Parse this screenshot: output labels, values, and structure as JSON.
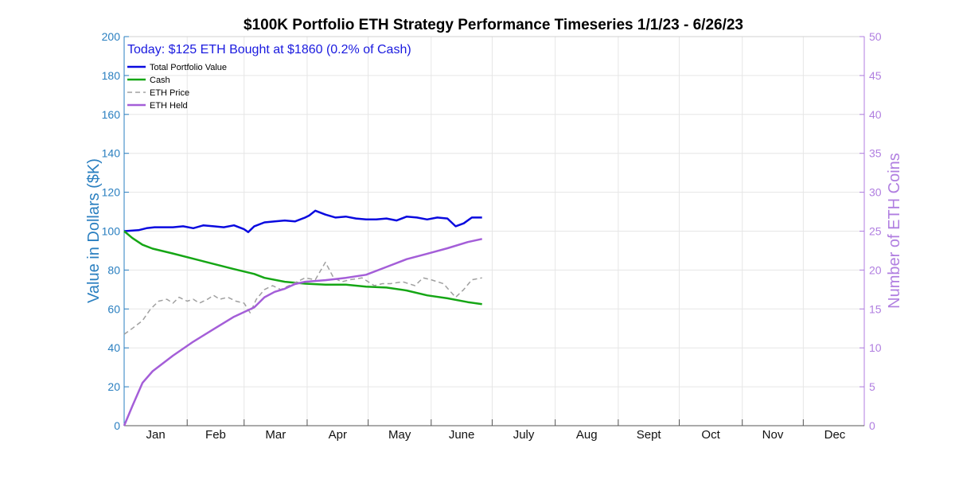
{
  "chart_data": {
    "type": "line",
    "title": "$100K Portfolio ETH Strategy Performance Timeseries 1/1/23 - 6/26/23",
    "annotation": "Today: $125 ETH Bought at $1860 (0.2% of Cash)",
    "ylabel_left": "Value in Dollars ($K)",
    "ylabel_right": "Number of ETH Coins",
    "ylim_left": [
      0,
      200
    ],
    "ylim_right": [
      0,
      50
    ],
    "yticks_left": [
      "0",
      "20",
      "40",
      "60",
      "80",
      "100",
      "120",
      "140",
      "160",
      "180",
      "200"
    ],
    "yticks_right": [
      "0",
      "5",
      "10",
      "15",
      "20",
      "25",
      "30",
      "35",
      "40",
      "45",
      "50"
    ],
    "x_months": [
      "Jan",
      "Feb",
      "Mar",
      "Apr",
      "May",
      "June",
      "July",
      "Aug",
      "Sept",
      "Oct",
      "Nov",
      "Dec"
    ],
    "x_unit": "day of year",
    "xlim": [
      1,
      365
    ],
    "grid": true,
    "legend_position": "top-left",
    "series": [
      {
        "name": "Total Portfolio Value",
        "axis": "left",
        "color": "#0a0adf",
        "style": "solid",
        "width": 2.5,
        "x": [
          1,
          8,
          12,
          16,
          20,
          25,
          30,
          35,
          40,
          45,
          50,
          55,
          60,
          62,
          65,
          70,
          75,
          80,
          85,
          90,
          92,
          95,
          100,
          105,
          110,
          115,
          120,
          125,
          130,
          135,
          140,
          145,
          150,
          155,
          160,
          164,
          168,
          172,
          177
        ],
        "y": [
          100,
          100.5,
          101.5,
          102,
          102,
          102,
          102.5,
          101.5,
          103,
          102.5,
          102,
          103,
          101,
          99.5,
          102.5,
          104.5,
          105,
          105.5,
          105,
          107,
          108,
          110.5,
          108.5,
          107,
          107.5,
          106.5,
          106,
          106,
          106.5,
          105.5,
          107.5,
          107,
          106,
          107,
          106.5,
          102.5,
          104,
          107,
          107
        ]
      },
      {
        "name": "Cash",
        "axis": "left",
        "color": "#15a615",
        "style": "solid",
        "width": 2.5,
        "x": [
          1,
          5,
          10,
          15,
          25,
          40,
          55,
          65,
          70,
          80,
          90,
          100,
          110,
          120,
          130,
          140,
          150,
          160,
          170,
          177
        ],
        "y": [
          100,
          96.5,
          93,
          91,
          88.5,
          84.5,
          80.5,
          78,
          76,
          74,
          73,
          72.5,
          72.5,
          71.5,
          71,
          69.5,
          67,
          65.5,
          63.5,
          62.5
        ]
      },
      {
        "name": "ETH Price",
        "axis": "left",
        "color": "#a0a0a0",
        "style": "dashed",
        "width": 1.5,
        "x": [
          1,
          5,
          10,
          14,
          18,
          22,
          25,
          28,
          32,
          35,
          38,
          42,
          45,
          48,
          52,
          56,
          60,
          63,
          66,
          70,
          74,
          78,
          82,
          86,
          90,
          95,
          100,
          104,
          108,
          112,
          118,
          124,
          128,
          132,
          138,
          144,
          148,
          152,
          158,
          164,
          168,
          172,
          177
        ],
        "y": [
          47,
          50,
          54,
          60,
          64,
          65,
          63,
          66,
          64,
          65,
          63,
          65,
          67,
          65,
          66,
          64,
          63,
          58,
          65,
          70,
          72,
          70,
          72,
          74,
          76,
          75,
          84,
          76,
          74,
          75,
          76,
          72,
          73,
          73,
          74,
          72,
          76,
          75,
          73,
          66,
          70,
          75,
          76
        ]
      },
      {
        "name": "ETH Held",
        "axis": "right",
        "color": "#a45ed8",
        "style": "solid",
        "width": 2.5,
        "x": [
          1,
          5,
          10,
          15,
          25,
          35,
          45,
          55,
          65,
          70,
          75,
          80,
          85,
          90,
          95,
          100,
          110,
          120,
          130,
          140,
          150,
          160,
          170,
          177
        ],
        "y": [
          0,
          2.5,
          5.5,
          7,
          9,
          10.8,
          12.4,
          14,
          15.2,
          16.5,
          17.2,
          17.6,
          18.2,
          18.5,
          18.6,
          18.7,
          19,
          19.4,
          20.4,
          21.4,
          22.1,
          22.8,
          23.6,
          24
        ]
      }
    ]
  }
}
